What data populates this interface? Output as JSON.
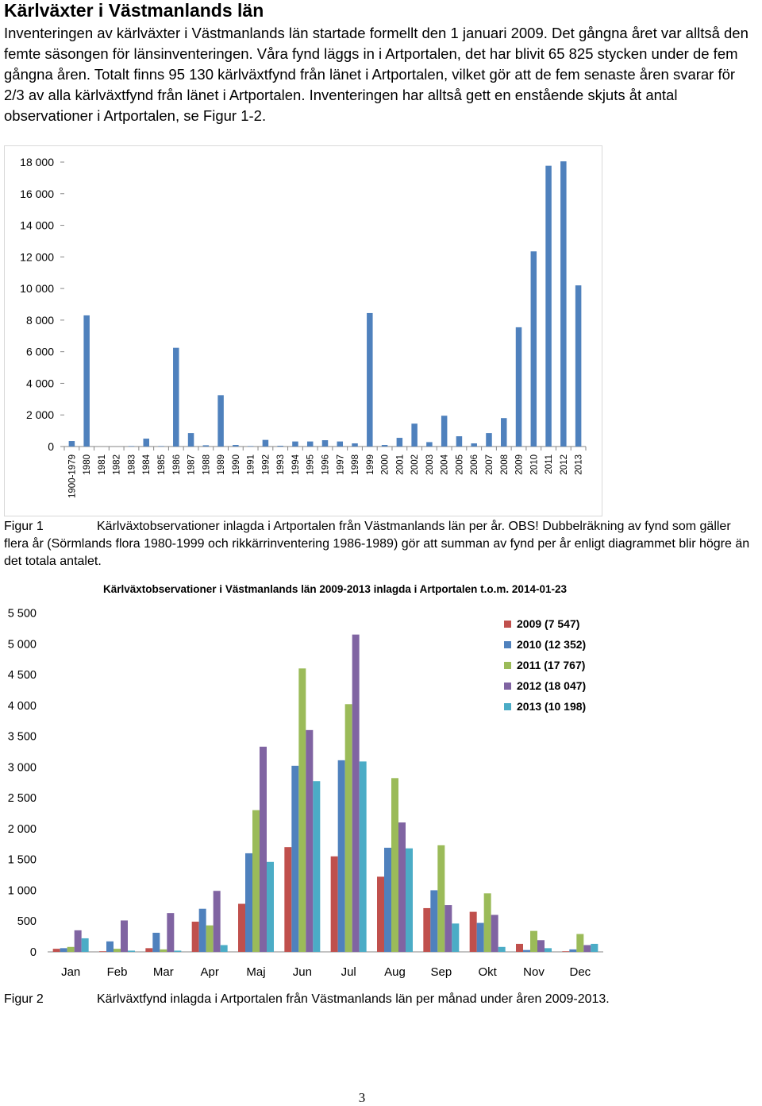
{
  "heading": "Kärlväxter i Västmanlands län",
  "intro": "Inventeringen av kärlväxter i Västmanlands län startade formellt den 1 januari 2009. Det gångna året var alltså den femte säsongen för länsinventeringen. Våra fynd läggs in i Artportalen, det har blivit 65 825 stycken under de fem gångna åren. Totalt finns 95 130 kärlväxtfynd från länet i Artportalen, vilket gör att de fem senaste åren svarar för 2/3 av alla kärlväxtfynd från länet i Artportalen. Inventeringen har alltså gett en enstående skjuts åt antal observationer i Artportalen, se Figur 1-2.",
  "figure1": {
    "label": "Figur 1",
    "caption": "Kärlväxtobservationer inlagda i Artportalen från Västmanlands län per år. OBS! Dubbelräkning av fynd som gäller flera år (Sörmlands flora 1980-1999 och rikkärrinventering 1986-1989) gör att summan av fynd per år enligt diagrammet blir högre än det totala antalet."
  },
  "figure2": {
    "label": "Figur 2",
    "caption": "Kärlväxtfynd inlagda i Artportalen från Västmanlands län per månad under åren 2009-2013."
  },
  "page_number": "3",
  "chart_data": [
    {
      "type": "bar",
      "title": "",
      "xlabel": "",
      "ylabel": "",
      "ylim": [
        0,
        18000
      ],
      "yticks": [
        "0",
        "2 000",
        "4 000",
        "6 000",
        "8 000",
        "10 000",
        "12 000",
        "14 000",
        "16 000",
        "18 000"
      ],
      "grid": false,
      "color": "#4F81BD",
      "categories": [
        "1900-1979",
        "1980",
        "1981",
        "1982",
        "1983",
        "1984",
        "1985",
        "1986",
        "1987",
        "1988",
        "1989",
        "1990",
        "1991",
        "1992",
        "1993",
        "1994",
        "1995",
        "1996",
        "1997",
        "1998",
        "1999",
        "2000",
        "2001",
        "2002",
        "2003",
        "2004",
        "2005",
        "2006",
        "2007",
        "2008",
        "2009",
        "2010",
        "2011",
        "2012",
        "2013"
      ],
      "values": [
        350,
        8300,
        0,
        0,
        30,
        500,
        30,
        6250,
        850,
        80,
        3250,
        100,
        30,
        420,
        50,
        320,
        320,
        400,
        320,
        200,
        8450,
        100,
        550,
        1450,
        280,
        1950,
        650,
        200,
        850,
        1800,
        7547,
        12352,
        17767,
        18047,
        10198
      ]
    },
    {
      "type": "bar",
      "title": "Kärlväxtobservationer i Västmanlands län 2009-2013 inlagda i Artportalen t.o.m. 2014-01-23",
      "xlabel": "",
      "ylabel": "",
      "ylim": [
        0,
        5500
      ],
      "yticks": [
        "0",
        "500",
        "1 000",
        "1 500",
        "2 000",
        "2 500",
        "3 000",
        "3 500",
        "4 000",
        "4 500",
        "5 000",
        "5 500"
      ],
      "grid": false,
      "legend": "top-right",
      "categories": [
        "Jan",
        "Feb",
        "Mar",
        "Apr",
        "Maj",
        "Jun",
        "Jul",
        "Aug",
        "Sep",
        "Okt",
        "Nov",
        "Dec"
      ],
      "series": [
        {
          "name": "2009 (7 547)",
          "color": "#C0504D",
          "values": [
            50,
            10,
            60,
            490,
            780,
            1700,
            1550,
            1220,
            710,
            650,
            130,
            10
          ]
        },
        {
          "name": "2010 (12 352)",
          "color": "#4F81BD",
          "values": [
            60,
            170,
            310,
            700,
            1600,
            3020,
            3110,
            1690,
            1000,
            470,
            30,
            40
          ]
        },
        {
          "name": "2011 (17 767)",
          "color": "#9BBB59",
          "values": [
            80,
            50,
            40,
            430,
            2300,
            4600,
            4020,
            2820,
            1730,
            950,
            340,
            290
          ]
        },
        {
          "name": "2012 (18 047)",
          "color": "#8064A2",
          "values": [
            350,
            510,
            630,
            990,
            3330,
            3600,
            5150,
            2100,
            760,
            600,
            190,
            110
          ]
        },
        {
          "name": "2013 (10 198)",
          "color": "#4BACC6",
          "values": [
            220,
            20,
            20,
            110,
            1460,
            2770,
            3090,
            1680,
            460,
            80,
            60,
            130
          ]
        }
      ]
    }
  ]
}
